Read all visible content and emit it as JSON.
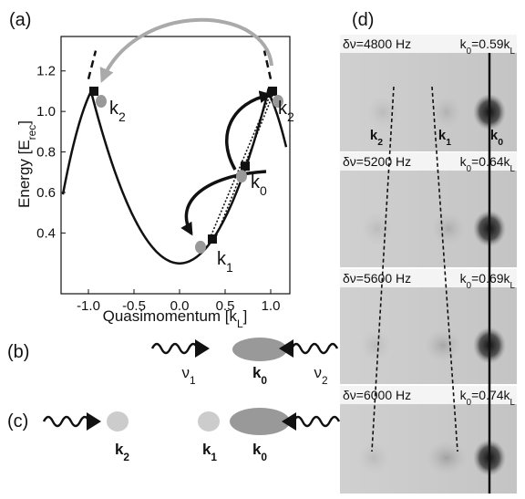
{
  "panels": {
    "a": "(a)",
    "b": "(b)",
    "c": "(c)",
    "d": "(d)"
  },
  "plot": {
    "xlim": [
      -1.3,
      1.2
    ],
    "ylim": [
      0.1,
      1.37
    ],
    "xticks": [
      {
        "value": -1,
        "label": "-1.0"
      },
      -0.5,
      {
        "value": 0,
        "label": "0.0"
      },
      0.5,
      {
        "value": 1,
        "label": "1.0"
      }
    ],
    "yticks": [
      0.4,
      0.6,
      0.8,
      {
        "value": 1,
        "label": "1.0"
      },
      1.2
    ],
    "xlabel": [
      "Quasimomentum [k",
      "L",
      "]"
    ],
    "ylabel": [
      "Energy [E",
      "rec",
      "]"
    ],
    "point_labels": [
      [
        "k",
        "2"
      ],
      [
        "k",
        "2"
      ],
      [
        "k",
        "0"
      ],
      [
        "k",
        "1"
      ]
    ]
  },
  "beams": {
    "b": [
      [
        "ν",
        "1"
      ],
      [
        "k",
        "0"
      ],
      [
        "ν",
        "2"
      ]
    ],
    "c": [
      [
        "k",
        "2"
      ],
      [
        "k",
        "1"
      ],
      [
        "k",
        "0"
      ]
    ]
  },
  "images": {
    "frames": [
      {
        "detuning": "δν=4800 Hz",
        "momentum": [
          "k",
          "0",
          "=0.59k",
          "L"
        ]
      },
      {
        "detuning": "δν=5200 Hz",
        "momentum": [
          "k",
          "0",
          "=0.64k",
          "L"
        ]
      },
      {
        "detuning": "δν=5600 Hz",
        "momentum": [
          "k",
          "0",
          "=0.69k",
          "L"
        ]
      },
      {
        "detuning": "δν=6000 Hz",
        "momentum": [
          "k",
          "0",
          "=0.74k",
          "L"
        ]
      }
    ],
    "labels": [
      [
        "k",
        "2"
      ],
      [
        "k",
        "1"
      ],
      [
        "k",
        "0"
      ]
    ]
  }
}
